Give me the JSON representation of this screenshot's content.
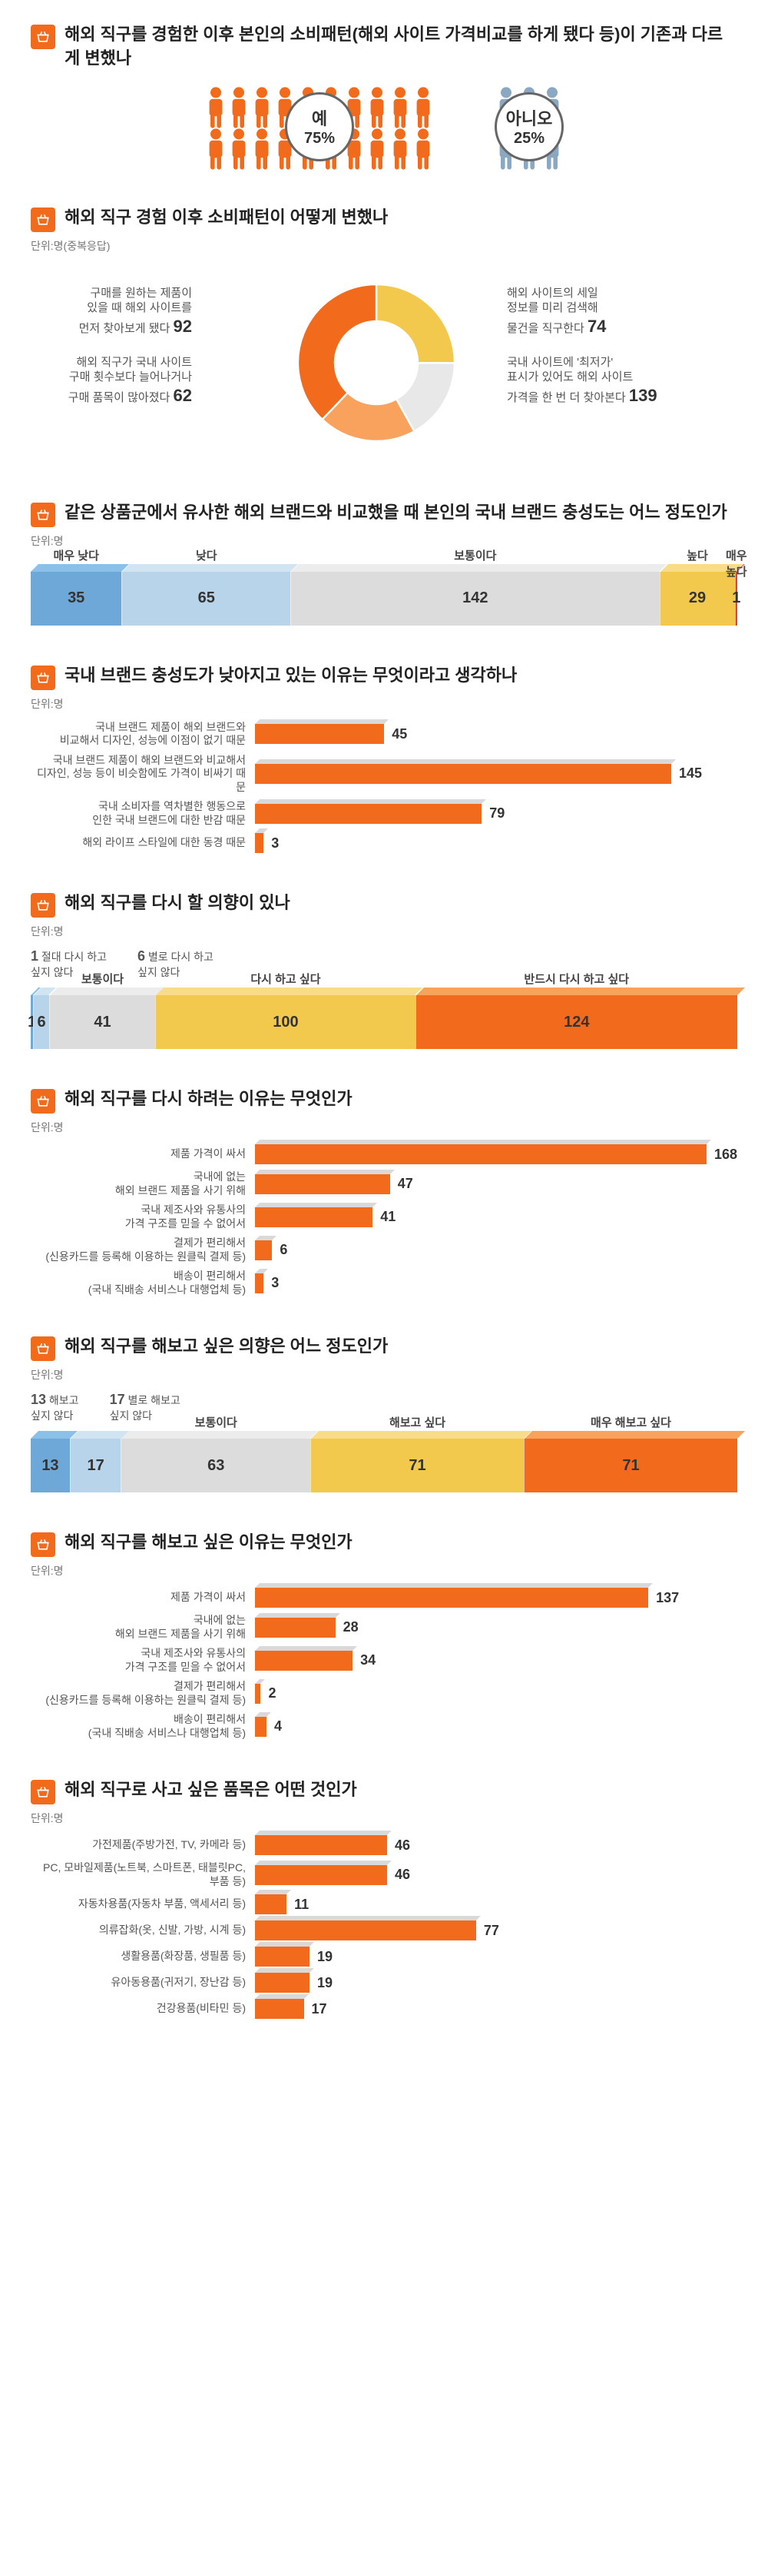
{
  "colors": {
    "orange": "#f26a1b",
    "orange_light": "#f9a25e",
    "orange_dark": "#d95400",
    "yellow": "#f2c94c",
    "yellow_dark": "#d9a800",
    "blue": "#6ea8d8",
    "blue_light": "#b8d4ea",
    "blue_dark": "#4a7aa8",
    "gray": "#bcbcbc",
    "gray_light": "#e0e0e0",
    "red": "#d14a3a",
    "text": "#333333",
    "text_light": "#777777"
  },
  "s1": {
    "title": "해외 직구를 경험한 이후 본인의 소비패턴(해외 사이트 가격비교를 하게 됐다 등)이 기존과 다르게 변했나",
    "yes_label": "예",
    "yes_pct": "75%",
    "yes_count": 20,
    "no_label": "아니오",
    "no_pct": "25%",
    "no_count": 6,
    "yes_color": "#f26a1b",
    "no_color": "#8aa8c2"
  },
  "s2": {
    "title": "해외 직구 경험 이후 소비패턴이 어떻게 변했나",
    "unit": "단위:명(중복응답)",
    "slices": [
      {
        "label": "구매를 원하는 제품이\n있을 때 해외 사이트를\n먼저 찾아보게 됐다",
        "value": 92,
        "color": "#f2c94c",
        "start": 0
      },
      {
        "label": "해외 직구가 국내 사이트\n구매 횟수보다 늘어나거나\n구매 품목이 많아졌다",
        "value": 62,
        "color": "#e8e8e8",
        "start": 92
      },
      {
        "label": "해외 사이트의 세일\n정보를 미리 검색해\n물건을 직구한다",
        "value": 74,
        "color": "#f9a25e",
        "start": 154
      },
      {
        "label": "국내 사이트에 '최저가'\n표시가 있어도 해외 사이트\n가격을 한 번 더 찾아본다",
        "value": 139,
        "color": "#f26a1b",
        "start": 228
      }
    ],
    "total": 367
  },
  "s3": {
    "title": "같은 상품군에서 유사한 해외 브랜드와 비교했을 때 본인의 국내 브랜드 충성도는 어느 정도인가",
    "unit": "단위:명",
    "segments": [
      {
        "label": "매우 낮다",
        "value": 35,
        "color": "#6ea8d8",
        "top": "#8bc0e8"
      },
      {
        "label": "낮다",
        "value": 65,
        "color": "#b8d4ea",
        "top": "#d0e4f2"
      },
      {
        "label": "보통이다",
        "value": 142,
        "color": "#dcdcdc",
        "top": "#ececec"
      },
      {
        "label": "높다",
        "value": 29,
        "color": "#f2c94c",
        "top": "#f8dc88"
      },
      {
        "label": "매우\n높다",
        "value": 1,
        "color": "#d14a3a",
        "top": "#e07060"
      }
    ],
    "total": 272
  },
  "s4": {
    "title": "국내 브랜드 충성도가 낮아지고 있는 이유는 무엇이라고 생각하나",
    "unit": "단위:명",
    "max": 168,
    "bars": [
      {
        "label": "국내 브랜드 제품이 해외 브랜드와\n비교해서 디자인, 성능에 이점이 없기 때문",
        "value": 45
      },
      {
        "label": "국내 브랜드 제품이 해외 브랜드와 비교해서\n디자인, 성능 등이 비슷함에도 가격이 비싸기 때문",
        "value": 145
      },
      {
        "label": "국내 소비자를 역차별한 행동으로\n인한 국내 브랜드에 대한 반감 때문",
        "value": 79
      },
      {
        "label": "해외 라이프 스타일에 대한 동경 때문",
        "value": 3
      }
    ]
  },
  "s5": {
    "title": "해외 직구를 다시 할 의향이 있나",
    "unit": "단위:명",
    "pre_labels": [
      {
        "label": "절대 다시 하고\n싶지 않다",
        "value": 1
      },
      {
        "label": "별로 다시 하고\n싶지 않다",
        "value": 6
      }
    ],
    "segments": [
      {
        "label": "",
        "value": 1,
        "color": "#6ea8d8",
        "top": "#8bc0e8"
      },
      {
        "label": "",
        "value": 6,
        "color": "#b8d4ea",
        "top": "#d0e4f2"
      },
      {
        "label": "보통이다",
        "value": 41,
        "color": "#dcdcdc",
        "top": "#ececec"
      },
      {
        "label": "다시 하고 싶다",
        "value": 100,
        "color": "#f2c94c",
        "top": "#f8dc88"
      },
      {
        "label": "반드시 다시 하고 싶다",
        "value": 124,
        "color": "#f26a1b",
        "top": "#f9a25e"
      }
    ],
    "total": 272
  },
  "s6": {
    "title": "해외 직구를 다시 하려는 이유는 무엇인가",
    "unit": "단위:명",
    "max": 168,
    "bars": [
      {
        "label": "제품 가격이 싸서",
        "value": 168
      },
      {
        "label": "국내에 없는\n해외 브랜드 제품을 사기 위해",
        "value": 47
      },
      {
        "label": "국내 제조사와 유통사의\n가격 구조를 믿을 수 없어서",
        "value": 41
      },
      {
        "label": "결제가 편리해서\n(신용카드를 등록해 이용하는 원클릭 결제 등)",
        "value": 6
      },
      {
        "label": "배송이 편리해서\n(국내 직배송 서비스나 대행업체 등)",
        "value": 3
      }
    ]
  },
  "s7": {
    "title": "해외 직구를 해보고 싶은 의향은 어느 정도인가",
    "unit": "단위:명",
    "pre_labels": [
      {
        "label": "해보고\n싶지 않다",
        "value": 13
      },
      {
        "label": "별로 해보고\n싶지 않다",
        "value": 17
      }
    ],
    "segments": [
      {
        "label": "",
        "value": 13,
        "color": "#6ea8d8",
        "top": "#8bc0e8"
      },
      {
        "label": "",
        "value": 17,
        "color": "#b8d4ea",
        "top": "#d0e4f2"
      },
      {
        "label": "보통이다",
        "value": 63,
        "color": "#dcdcdc",
        "top": "#ececec"
      },
      {
        "label": "해보고 싶다",
        "value": 71,
        "color": "#f2c94c",
        "top": "#f8dc88"
      },
      {
        "label": "매우 해보고 싶다",
        "value": 71,
        "color": "#f26a1b",
        "top": "#f9a25e"
      }
    ],
    "total": 235
  },
  "s8": {
    "title": "해외 직구를 해보고 싶은 이유는 무엇인가",
    "unit": "단위:명",
    "max": 168,
    "bars": [
      {
        "label": "제품 가격이 싸서",
        "value": 137
      },
      {
        "label": "국내에 없는\n해외 브랜드 제품을 사기 위해",
        "value": 28
      },
      {
        "label": "국내 제조사와 유통사의\n가격 구조를 믿을 수 없어서",
        "value": 34
      },
      {
        "label": "결제가 편리해서\n(신용카드를 등록해 이용하는 원클릭 결제 등)",
        "value": 2
      },
      {
        "label": "배송이 편리해서\n(국내 직배송 서비스나 대행업체 등)",
        "value": 4
      }
    ]
  },
  "s9": {
    "title": "해외 직구로 사고 싶은 품목은 어떤 것인가",
    "unit": "단위:명",
    "max": 168,
    "bars": [
      {
        "label": "가전제품(주방가전, TV, 카메라 등)",
        "value": 46
      },
      {
        "label": "PC, 모바일제품(노트북, 스마트폰, 태블릿PC, 부품 등)",
        "value": 46
      },
      {
        "label": "자동차용품(자동차 부품, 액세서리 등)",
        "value": 11
      },
      {
        "label": "의류잡화(옷, 신발, 가방, 시계 등)",
        "value": 77
      },
      {
        "label": "생활용품(화장품, 생필품 등)",
        "value": 19
      },
      {
        "label": "유아동용품(귀저기, 장난감 등)",
        "value": 19
      },
      {
        "label": "건강용품(비타민 등)",
        "value": 17
      }
    ]
  }
}
